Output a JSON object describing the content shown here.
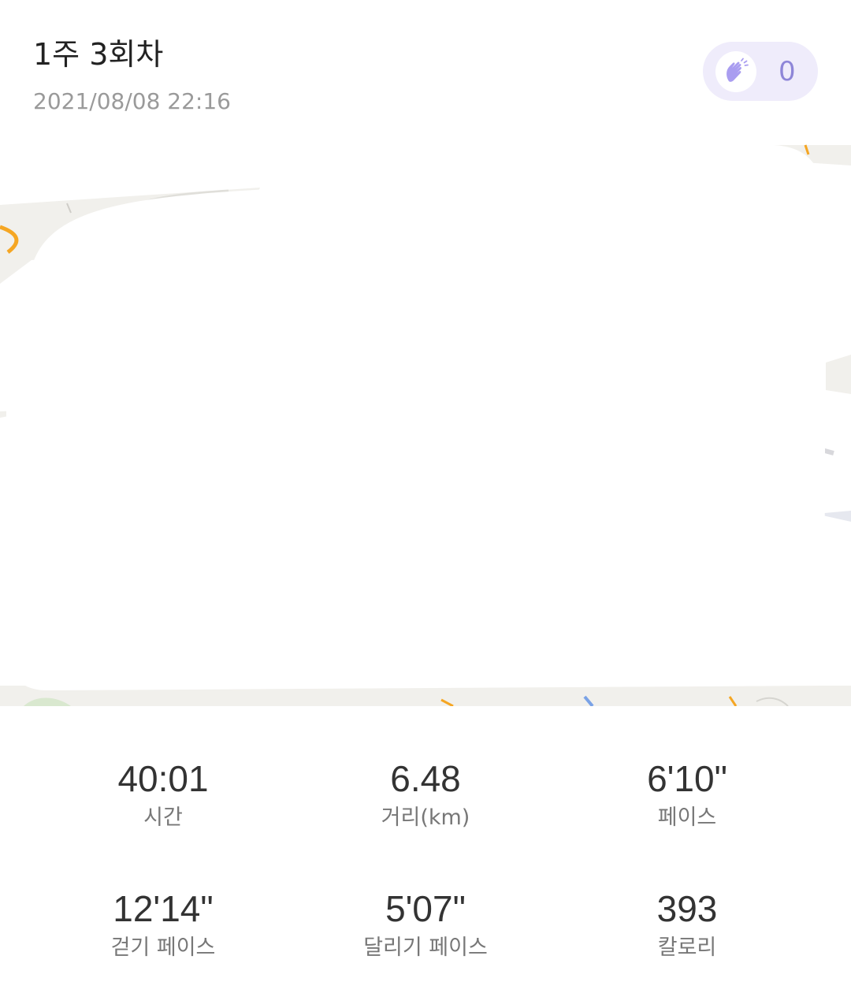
{
  "header": {
    "title": "1주 3회차",
    "timestamp": "2021/08/08 22:16"
  },
  "clap": {
    "count": "0",
    "icon": "clapping-hands-icon",
    "accent": "#8e86d8",
    "background": "#efecfb"
  },
  "map": {
    "icon": "route-map"
  },
  "stats": [
    {
      "value": "40:01",
      "label": "시간"
    },
    {
      "value": "6.48",
      "label": "거리(km)"
    },
    {
      "value": "6'10\"",
      "label": "페이스"
    },
    {
      "value": "12'14\"",
      "label": "걷기 페이스"
    },
    {
      "value": "5'07\"",
      "label": "달리기 페이스"
    },
    {
      "value": "393",
      "label": "칼로리"
    }
  ]
}
